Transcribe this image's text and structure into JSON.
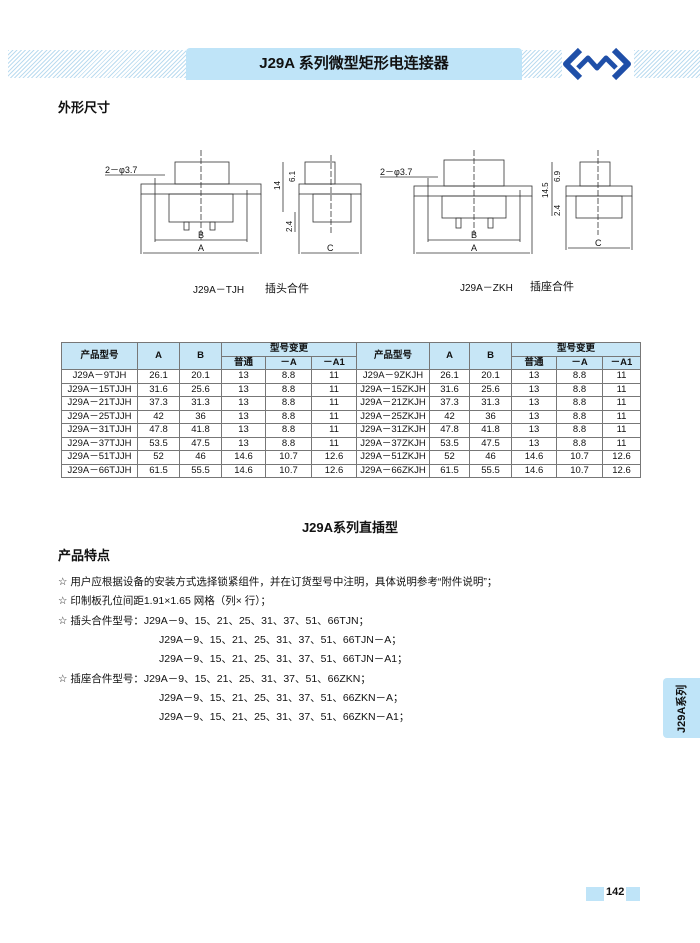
{
  "header": {
    "title": "J29A 系列微型矩形电连接器",
    "accent": "#bfe4f8",
    "logo_color": "#1f4fa8"
  },
  "dimensions": {
    "heading": "外形尺寸",
    "plug": {
      "hole_label": "2－φ3.7",
      "label_b": "B",
      "label_a": "A",
      "label_c": "C",
      "dim_14": "14",
      "dim_61": "6.1",
      "dim_24": "2.4",
      "model": "J29A－TJH",
      "name": "插头合件"
    },
    "socket": {
      "hole_label": "2－φ3.7",
      "label_b": "B",
      "label_a": "A",
      "label_c": "C",
      "dim_145": "14.5",
      "dim_69": "6.9",
      "dim_24": "2.4",
      "model": "J29A－ZKH",
      "name": "插座合件"
    }
  },
  "table": {
    "headers": {
      "model": "产品型号",
      "a": "A",
      "b": "B",
      "variant": "型号变更",
      "normal": "普通",
      "minus_a": "－A",
      "minus_a1": "－A1"
    },
    "rows": [
      [
        "J29A－9TJH",
        "26.1",
        "20.1",
        "13",
        "8.8",
        "11",
        "J29A－9ZKJH",
        "26.1",
        "20.1",
        "13",
        "8.8",
        "11"
      ],
      [
        "J29A－15TJJH",
        "31.6",
        "25.6",
        "13",
        "8.8",
        "11",
        "J29A－15ZKJH",
        "31.6",
        "25.6",
        "13",
        "8.8",
        "11"
      ],
      [
        "J29A－21TJJH",
        "37.3",
        "31.3",
        "13",
        "8.8",
        "11",
        "J29A－21ZKJH",
        "37.3",
        "31.3",
        "13",
        "8.8",
        "11"
      ],
      [
        "J29A－25TJJH",
        "42",
        "36",
        "13",
        "8.8",
        "11",
        "J29A－25ZKJH",
        "42",
        "36",
        "13",
        "8.8",
        "11"
      ],
      [
        "J29A－31TJJH",
        "47.8",
        "41.8",
        "13",
        "8.8",
        "11",
        "J29A－31ZKJH",
        "47.8",
        "41.8",
        "13",
        "8.8",
        "11"
      ],
      [
        "J29A－37TJJH",
        "53.5",
        "47.5",
        "13",
        "8.8",
        "11",
        "J29A－37ZKJH",
        "53.5",
        "47.5",
        "13",
        "8.8",
        "11"
      ],
      [
        "J29A－51TJJH",
        "52",
        "46",
        "14.6",
        "10.7",
        "12.6",
        "J29A－51ZKJH",
        "52",
        "46",
        "14.6",
        "10.7",
        "12.6"
      ],
      [
        "J29A－66TJJH",
        "61.5",
        "55.5",
        "14.6",
        "10.7",
        "12.6",
        "J29A－66ZKJH",
        "61.5",
        "55.5",
        "14.6",
        "10.7",
        "12.6"
      ]
    ]
  },
  "section": {
    "title": "J29A系列直插型",
    "features_heading": "产品特点"
  },
  "features": [
    "☆  用户应根据设备的安装方式选择锁紧组件，并在订货型号中注明，具体说明参考“附件说明”；",
    "☆  印制板孔位间距1.91×1.65 网格（列× 行）；",
    "☆  插头合件型号：J29A－9、15、21、25、31、37、51、66TJN；",
    "J29A－9、15、21、25、31、37、51、66TJN－A；",
    "J29A－9、15、21、25、31、37、51、66TJN－A1；",
    "☆  插座合件型号：J29A－9、15、21、25、31、37、51、66ZKN；",
    "J29A－9、15、21、25、31、37、51、66ZKN－A；",
    "J29A－9、15、21、25、31、37、51、66ZKN－A1；"
  ],
  "side_tab": "J29A系列",
  "page_number": "142"
}
